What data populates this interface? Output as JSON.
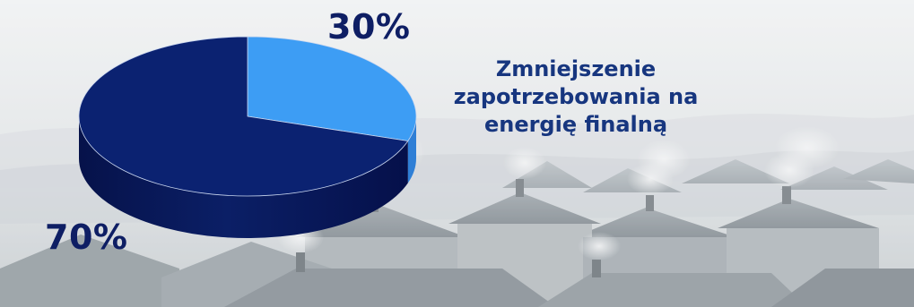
{
  "chart_data": {
    "type": "pie",
    "title": "Zmniejszenie zapotrzebowania na energię finalną",
    "slices": [
      {
        "label": "30%",
        "value": 30,
        "color": "#3d9df4"
      },
      {
        "label": "70%",
        "value": 70,
        "color": "#0b2271"
      }
    ],
    "style": "3d",
    "legend": "none"
  },
  "colors": {
    "label_text": "#0e1e64",
    "caption_text": "#17367f",
    "slice_small": "#3d9df4",
    "slice_large": "#0b2271",
    "side_shade": "#071652"
  }
}
